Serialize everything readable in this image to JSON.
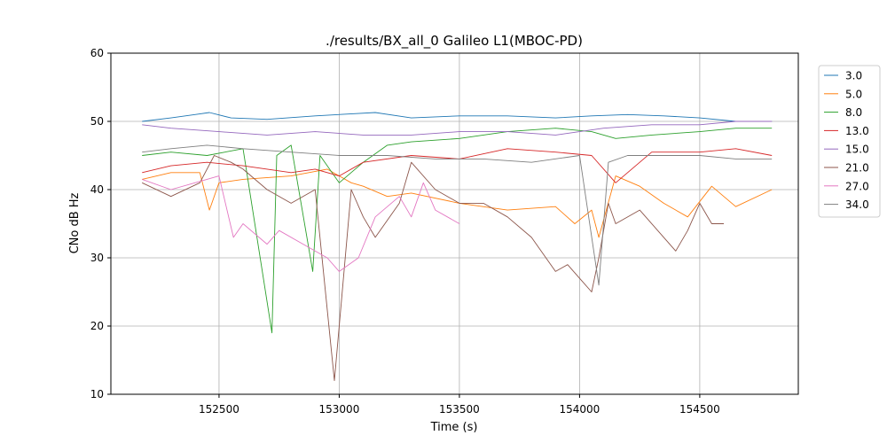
{
  "chart_data": {
    "type": "line",
    "title": "./results/BX_all_0 Galileo L1(MBOC-PD)",
    "xlabel": "Time (s)",
    "ylabel": "CNo dB Hz",
    "xlim": [
      152050,
      154910
    ],
    "ylim": [
      10,
      60
    ],
    "xticks": [
      152500,
      153000,
      153500,
      154000,
      154500
    ],
    "yticks": [
      10,
      20,
      30,
      40,
      50,
      60
    ],
    "grid": true,
    "legend_position": "right, outside plot",
    "series": [
      {
        "name": "3.0",
        "color": "#1f77b4",
        "x": [
          152180,
          152300,
          152400,
          152460,
          152550,
          152700,
          152900,
          153150,
          153300,
          153500,
          153700,
          153900,
          154050,
          154200,
          154350,
          154500,
          154650,
          154800
        ],
        "y": [
          50,
          50.5,
          51,
          51.3,
          50.5,
          50.3,
          50.8,
          51.3,
          50.5,
          50.8,
          50.8,
          50.5,
          50.8,
          51,
          50.8,
          50.5,
          50,
          50
        ]
      },
      {
        "name": "5.0",
        "color": "#ff7f0e",
        "x": [
          152180,
          152300,
          152420,
          152460,
          152500,
          152600,
          152800,
          152950,
          153050,
          153100,
          153200,
          153300,
          153500,
          153700,
          153900,
          153980,
          154050,
          154080,
          154150,
          154250,
          154350,
          154450,
          154550,
          154650,
          154800
        ],
        "y": [
          41.5,
          42.5,
          42.5,
          37,
          41,
          41.5,
          42,
          43,
          41,
          40.5,
          39,
          39.5,
          38,
          37,
          37.5,
          35,
          37,
          33,
          42,
          40.5,
          38,
          36,
          40.5,
          37.5,
          40
        ]
      },
      {
        "name": "8.0",
        "color": "#2ca02c",
        "x": [
          152180,
          152300,
          152450,
          152600,
          152720,
          152740,
          152800,
          152890,
          152920,
          153000,
          153100,
          153200,
          153300,
          153500,
          153700,
          153900,
          154050,
          154150,
          154300,
          154500,
          154650,
          154800
        ],
        "y": [
          45,
          45.5,
          45,
          46,
          19,
          45,
          46.5,
          28,
          45,
          41,
          44,
          46.5,
          47,
          47.5,
          48.5,
          49,
          48.5,
          47.5,
          48,
          48.5,
          49,
          49
        ]
      },
      {
        "name": "13.0",
        "color": "#d62728",
        "x": [
          152180,
          152300,
          152450,
          152600,
          152800,
          152900,
          153000,
          153100,
          153300,
          153500,
          153700,
          153900,
          154050,
          154150,
          154300,
          154500,
          154650,
          154800
        ],
        "y": [
          42.5,
          43.5,
          44,
          43.5,
          42.5,
          43,
          42,
          44,
          45,
          44.5,
          46,
          45.5,
          45,
          41,
          45.5,
          45.5,
          46,
          45
        ]
      },
      {
        "name": "15.0",
        "color": "#9467bd",
        "x": [
          152180,
          152300,
          152500,
          152700,
          152900,
          153100,
          153300,
          153500,
          153700,
          153900,
          154100,
          154300,
          154500,
          154650,
          154800
        ],
        "y": [
          49.5,
          49,
          48.5,
          48,
          48.5,
          48,
          48,
          48.5,
          48.5,
          48,
          49,
          49.5,
          49.5,
          50,
          50
        ]
      },
      {
        "name": "21.0",
        "color": "#8c564b",
        "x": [
          152180,
          152300,
          152420,
          152480,
          152550,
          152600,
          152700,
          152800,
          152900,
          152980,
          153050,
          153100,
          153150,
          153250,
          153300,
          153400,
          153500,
          153600,
          153700,
          153800,
          153900,
          153950,
          154000,
          154050,
          154080,
          154120,
          154150,
          154250,
          154350,
          154400,
          154450,
          154500,
          154550,
          154600
        ],
        "y": [
          41,
          39,
          41,
          45,
          44,
          43,
          40,
          38,
          40,
          12,
          40,
          36,
          33,
          38,
          44,
          40,
          38,
          38,
          36,
          33,
          28,
          29,
          27,
          25,
          30,
          38,
          35,
          37,
          33,
          31,
          34,
          38,
          35,
          35
        ]
      },
      {
        "name": "27.0",
        "color": "#e377c2",
        "x": [
          152180,
          152300,
          152400,
          152500,
          152560,
          152600,
          152700,
          152750,
          152850,
          152950,
          153000,
          153080,
          153150,
          153250,
          153300,
          153350,
          153400,
          153500
        ],
        "y": [
          41.5,
          40,
          41,
          42,
          33,
          35,
          32,
          34,
          32,
          30,
          28,
          30,
          36,
          39,
          36,
          41,
          37,
          35
        ]
      },
      {
        "name": "34.0",
        "color": "#7f7f7f",
        "x": [
          152180,
          152300,
          152450,
          152600,
          152800,
          153000,
          153200,
          153400,
          153600,
          153800,
          154000,
          154080,
          154120,
          154200,
          154350,
          154500,
          154650,
          154800
        ],
        "y": [
          45.5,
          46,
          46.5,
          46,
          45.5,
          45,
          45,
          44.5,
          44.5,
          44,
          45,
          26,
          44,
          45,
          45,
          45,
          44.5,
          44.5
        ]
      }
    ]
  }
}
